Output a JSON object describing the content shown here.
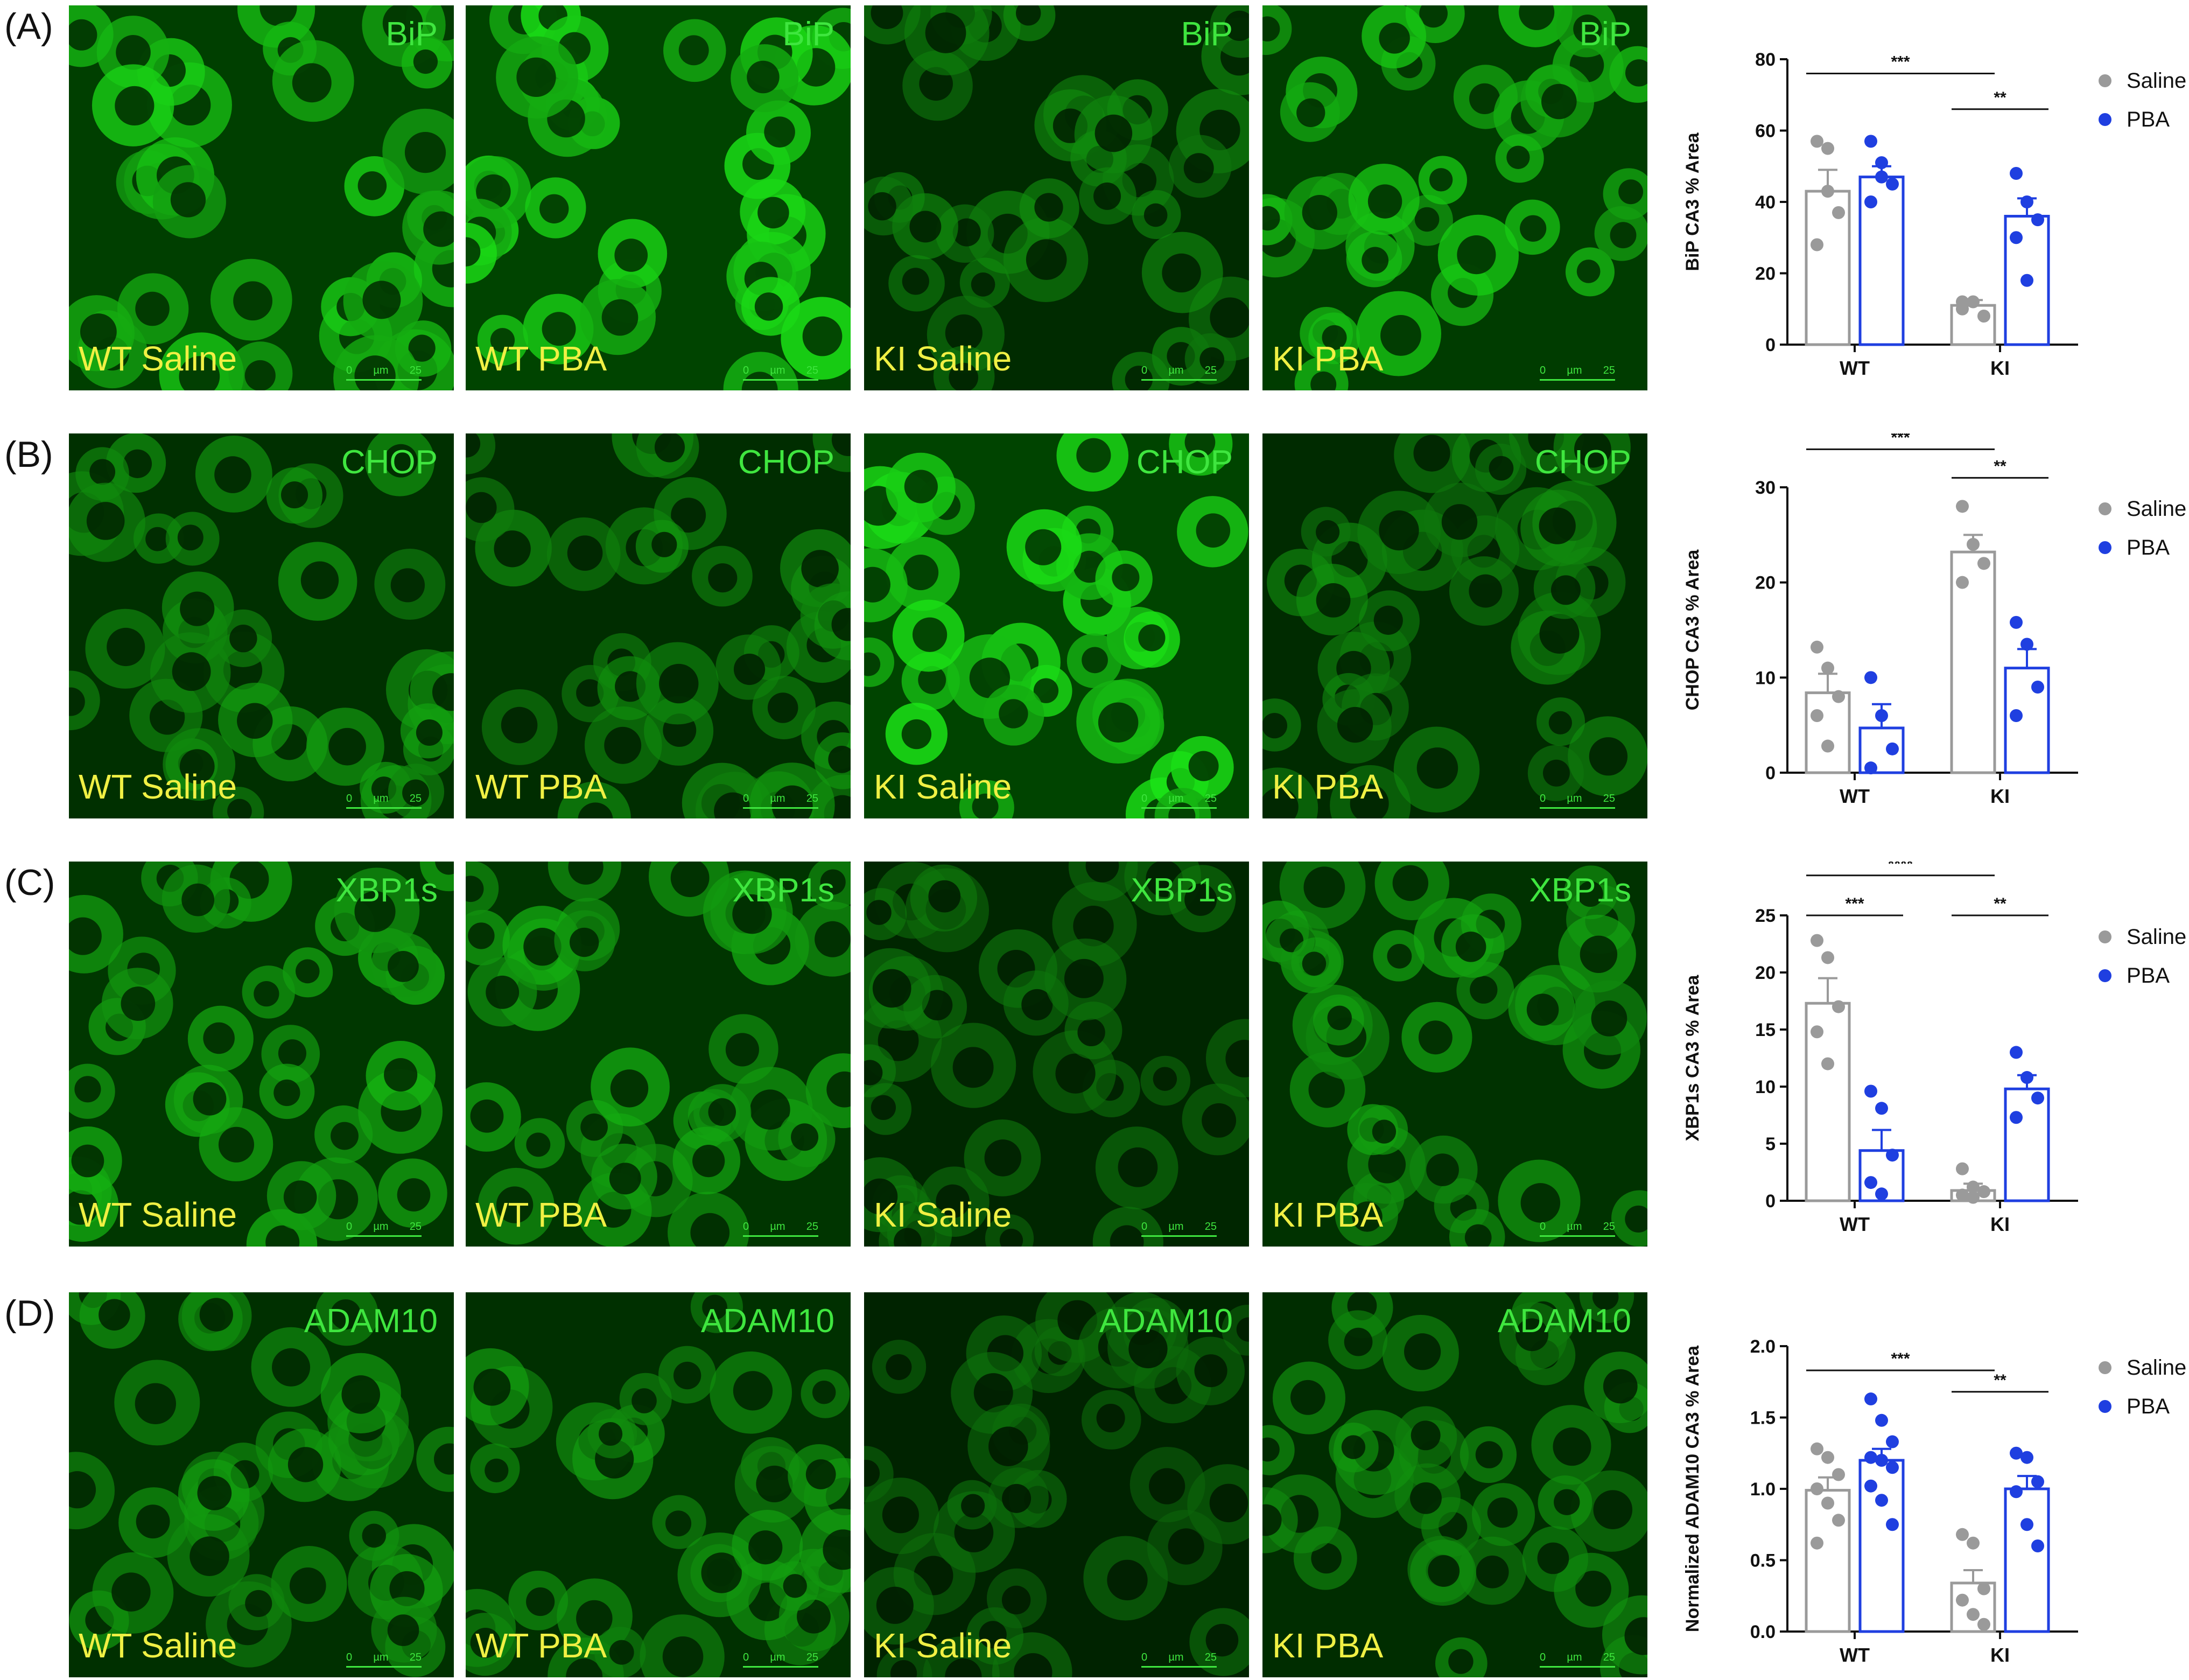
{
  "colors": {
    "saline": "#9a9a9a",
    "pba": "#1f3fe0",
    "marker_text": "#3fe63f",
    "condition_text": "#f0f044"
  },
  "legend": {
    "saline": "Saline",
    "pba": "PBA"
  },
  "scale_bar": {
    "zero": "0",
    "unit": "µm",
    "value": "25"
  },
  "panels": [
    {
      "letter": "(A)",
      "marker": "BiP",
      "images": [
        {
          "condition": "WT Saline",
          "intensity": 0.85
        },
        {
          "condition": "WT PBA",
          "intensity": 0.95
        },
        {
          "condition": "KI Saline",
          "intensity": 0.45
        },
        {
          "condition": "KI PBA",
          "intensity": 0.8
        }
      ]
    },
    {
      "letter": "(B)",
      "marker": "CHOP",
      "images": [
        {
          "condition": "WT Saline",
          "intensity": 0.55
        },
        {
          "condition": "WT PBA",
          "intensity": 0.5
        },
        {
          "condition": "KI Saline",
          "intensity": 0.95
        },
        {
          "condition": "KI PBA",
          "intensity": 0.45
        }
      ]
    },
    {
      "letter": "(C)",
      "marker": "XBP1s",
      "images": [
        {
          "condition": "WT Saline",
          "intensity": 0.7
        },
        {
          "condition": "WT PBA",
          "intensity": 0.65
        },
        {
          "condition": "KI Saline",
          "intensity": 0.35
        },
        {
          "condition": "KI PBA",
          "intensity": 0.6
        }
      ]
    },
    {
      "letter": "(D)",
      "marker": "ADAM10",
      "images": [
        {
          "condition": "WT Saline",
          "intensity": 0.55
        },
        {
          "condition": "WT PBA",
          "intensity": 0.55
        },
        {
          "condition": "KI Saline",
          "intensity": 0.3
        },
        {
          "condition": "KI PBA",
          "intensity": 0.5
        }
      ]
    }
  ],
  "chart_data": [
    {
      "type": "bar",
      "ylabel": "BiP CA3 % Area",
      "categories": [
        "WT",
        "KI"
      ],
      "ylim": [
        0,
        80
      ],
      "yticks": [
        0,
        20,
        40,
        60,
        80
      ],
      "ytick_labels": [
        "0",
        "20",
        "40",
        "60",
        "80"
      ],
      "series": [
        {
          "name": "Saline",
          "values": [
            43,
            11
          ],
          "errors": [
            6,
            1.5
          ],
          "points": [
            [
              57,
              55,
              37,
              28,
              43
            ],
            [
              10,
              12,
              8,
              12
            ]
          ]
        },
        {
          "name": "PBA",
          "values": [
            47,
            36
          ],
          "errors": [
            3,
            5
          ],
          "points": [
            [
              57,
              51,
              45,
              40,
              47
            ],
            [
              48,
              40,
              35,
              30,
              18
            ]
          ]
        }
      ],
      "significance": [
        {
          "label": "***",
          "from": "WT Saline",
          "to": "KI Saline",
          "level": 76
        },
        {
          "label": "**",
          "from": "KI Saline",
          "to": "KI PBA",
          "level": 66
        }
      ]
    },
    {
      "type": "bar",
      "ylabel": "CHOP CA3 % Area",
      "categories": [
        "WT",
        "KI"
      ],
      "ylim": [
        0,
        30
      ],
      "yticks": [
        0,
        10,
        20,
        30
      ],
      "ytick_labels": [
        "0",
        "10",
        "20",
        "30"
      ],
      "series": [
        {
          "name": "Saline",
          "values": [
            8.4,
            23.2
          ],
          "errors": [
            2,
            1.8
          ],
          "points": [
            [
              13.2,
              11,
              8,
              6,
              2.8
            ],
            [
              28,
              24,
              22,
              20
            ]
          ]
        },
        {
          "name": "PBA",
          "values": [
            4.7,
            11
          ],
          "errors": [
            2.5,
            2
          ],
          "points": [
            [
              10,
              6,
              2.5,
              0.5
            ],
            [
              15.8,
              13.5,
              9,
              6
            ]
          ]
        }
      ],
      "significance": [
        {
          "label": "***",
          "from": "WT Saline",
          "to": "KI Saline",
          "level": 34
        },
        {
          "label": "**",
          "from": "KI Saline",
          "to": "KI PBA",
          "level": 31
        }
      ]
    },
    {
      "type": "bar",
      "ylabel": "XBP1s CA3 % Area",
      "categories": [
        "WT",
        "KI"
      ],
      "ylim": [
        0,
        25
      ],
      "yticks": [
        0,
        5,
        10,
        15,
        20,
        25
      ],
      "ytick_labels": [
        "0",
        "5",
        "10",
        "15",
        "20",
        "25"
      ],
      "series": [
        {
          "name": "Saline",
          "values": [
            17.3,
            0.9
          ],
          "errors": [
            2.2,
            0.6
          ],
          "points": [
            [
              22.8,
              21.3,
              17,
              14.8,
              12
            ],
            [
              2.8,
              1.2,
              0.8,
              0.5,
              0.3
            ]
          ]
        },
        {
          "name": "PBA",
          "values": [
            4.4,
            9.8
          ],
          "errors": [
            1.8,
            1.2
          ],
          "points": [
            [
              9.6,
              8.1,
              4,
              1.6,
              0.6
            ],
            [
              13,
              10.8,
              9,
              7.3
            ]
          ]
        }
      ],
      "significance": [
        {
          "label": "****",
          "from": "WT Saline",
          "to": "KI Saline",
          "level": 28.5
        },
        {
          "label": "***",
          "from": "WT Saline",
          "to": "WT PBA",
          "level": 25
        },
        {
          "label": "**",
          "from": "KI Saline",
          "to": "KI PBA",
          "level": 25
        }
      ]
    },
    {
      "type": "bar",
      "ylabel": "Normalized ADAM10 CA3 % Area",
      "categories": [
        "WT",
        "KI"
      ],
      "ylim": [
        0,
        2.0
      ],
      "yticks": [
        0,
        0.5,
        1.0,
        1.5,
        2.0
      ],
      "ytick_labels": [
        "0.0",
        "0.5",
        "1.0",
        "1.5",
        "2.0"
      ],
      "series": [
        {
          "name": "Saline",
          "values": [
            0.99,
            0.34
          ],
          "errors": [
            0.09,
            0.09
          ],
          "points": [
            [
              1.28,
              1.22,
              1.1,
              1.0,
              0.9,
              0.78,
              0.62
            ],
            [
              0.68,
              0.62,
              0.3,
              0.22,
              0.12,
              0.05
            ]
          ]
        },
        {
          "name": "PBA",
          "values": [
            1.2,
            1.0
          ],
          "errors": [
            0.08,
            0.09
          ],
          "points": [
            [
              1.63,
              1.48,
              1.33,
              1.22,
              1.2,
              1.15,
              1.02,
              0.92,
              0.75
            ],
            [
              1.25,
              1.22,
              1.05,
              0.98,
              0.75,
              0.6
            ]
          ]
        }
      ],
      "significance": [
        {
          "label": "***",
          "from": "WT Saline",
          "to": "KI Saline",
          "level": 1.83
        },
        {
          "label": "**",
          "from": "KI Saline",
          "to": "KI PBA",
          "level": 1.68
        }
      ]
    }
  ]
}
